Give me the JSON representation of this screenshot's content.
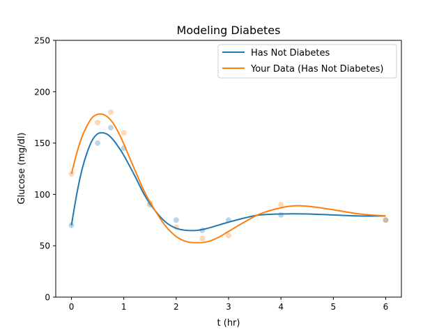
{
  "chart_data": {
    "type": "line",
    "title": "Modeling Diabetes",
    "xlabel": "t (hr)",
    "ylabel": "Glucose (mg/dl)",
    "xlim": [
      -0.3,
      6.3
    ],
    "ylim": [
      0,
      250
    ],
    "xticks": [
      0,
      1,
      2,
      3,
      4,
      5,
      6
    ],
    "yticks": [
      0,
      50,
      100,
      150,
      200,
      250
    ],
    "grid": false,
    "legend_position": "top-right",
    "series": [
      {
        "name": "Has Not Diabetes",
        "color": "#1f77b4",
        "points": {
          "x": [
            0,
            0.5,
            0.75,
            1,
            1.5,
            2,
            2.5,
            3,
            4,
            6
          ],
          "y": [
            70,
            150,
            165,
            145,
            90,
            75,
            65,
            75,
            80,
            75
          ]
        },
        "curve": {
          "x": [
            0,
            0.1,
            0.2,
            0.3,
            0.4,
            0.5,
            0.6,
            0.7,
            0.8,
            0.9,
            1.0,
            1.2,
            1.4,
            1.6,
            1.8,
            2.0,
            2.2,
            2.4,
            2.6,
            2.8,
            3.0,
            3.3,
            3.6,
            4.0,
            4.5,
            5.0,
            5.5,
            6.0
          ],
          "y": [
            70,
            100,
            124,
            141,
            153,
            159,
            160,
            158,
            153,
            146,
            138,
            119,
            99,
            84,
            73,
            67,
            65,
            65,
            67,
            70,
            73,
            77,
            80,
            81,
            81,
            80,
            79,
            79
          ]
        }
      },
      {
        "name": "Your Data (Has Not Diabetes)",
        "color": "#ff7f0e",
        "points": {
          "x": [
            0,
            0.5,
            0.75,
            1,
            1.5,
            2,
            2.5,
            3,
            4,
            6
          ],
          "y": [
            120,
            170,
            180,
            160,
            92,
            68,
            57,
            60,
            90,
            75
          ]
        },
        "curve": {
          "x": [
            0,
            0.1,
            0.2,
            0.3,
            0.4,
            0.5,
            0.6,
            0.7,
            0.8,
            0.9,
            1.0,
            1.2,
            1.4,
            1.6,
            1.8,
            2.0,
            2.2,
            2.4,
            2.6,
            2.8,
            3.0,
            3.3,
            3.6,
            4.0,
            4.3,
            4.6,
            5.0,
            5.5,
            6.0
          ],
          "y": [
            120,
            140,
            156,
            167,
            175,
            178,
            178,
            175,
            169,
            160,
            149,
            125,
            102,
            84,
            69,
            59,
            54,
            53,
            54,
            58,
            64,
            73,
            81,
            87,
            89,
            88,
            85,
            81,
            79
          ]
        }
      }
    ]
  }
}
